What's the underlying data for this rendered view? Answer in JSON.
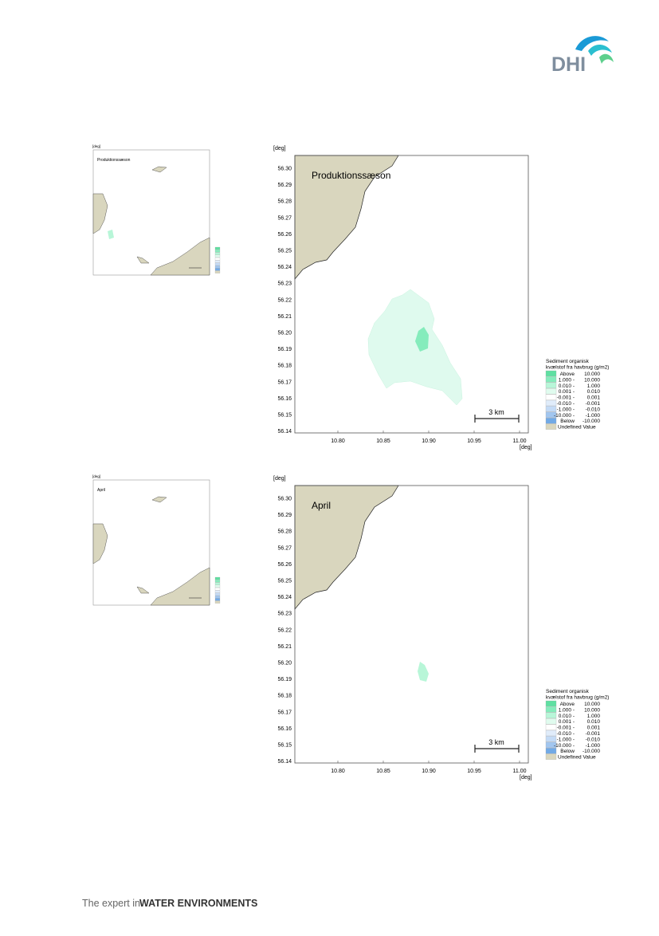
{
  "header": {
    "logo": "DHI"
  },
  "map_axes": {
    "unit": "[deg]",
    "yticks": [
      "56.30",
      "56.29",
      "56.28",
      "56.27",
      "56.26",
      "56.25",
      "56.24",
      "56.23",
      "56.22",
      "56.21",
      "56.20",
      "56.19",
      "56.18",
      "56.17",
      "56.16",
      "56.15",
      "56.14"
    ],
    "xticks": [
      "10.80",
      "10.85",
      "10.90",
      "10.95",
      "11.00"
    ],
    "scale_bar": "3 km",
    "legend": {
      "title": [
        "Sediment organisk",
        "kvælstof fra havbrug (g/m2)"
      ],
      "rows": [
        {
          "from": "Above",
          "to": "10.000",
          "color": "#5fe0a2"
        },
        {
          "from": "1.000 -",
          "to": "10.000",
          "color": "#85ecbc"
        },
        {
          "from": "0.010 -",
          "to": "1.000",
          "color": "#b8f6d8"
        },
        {
          "from": "0.001 -",
          "to": "0.010",
          "color": "#e0fbee"
        },
        {
          "from": "-0.001 -",
          "to": "0.001",
          "color": "#ffffff"
        },
        {
          "from": "-0.010 -",
          "to": "-0.001",
          "color": "#e0ecfa"
        },
        {
          "from": "-1.000 -",
          "to": "-0.010",
          "color": "#c4dbf6"
        },
        {
          "from": "-10.000 -",
          "to": "-1.000",
          "color": "#a2c6ef"
        },
        {
          "from": "Below",
          "to": "-10.000",
          "color": "#72aae6"
        },
        {
          "from": "Undefined Value",
          "to": null,
          "color": "#d9d6be"
        }
      ]
    }
  },
  "panels": [
    {
      "label": "Produktionssæson",
      "overview_label": "Produktionssæson"
    },
    {
      "label": "April",
      "overview_label": "April"
    }
  ],
  "footer": {
    "lead": "The expert in",
    "brand": "WATER ENVIRONMENTS"
  }
}
